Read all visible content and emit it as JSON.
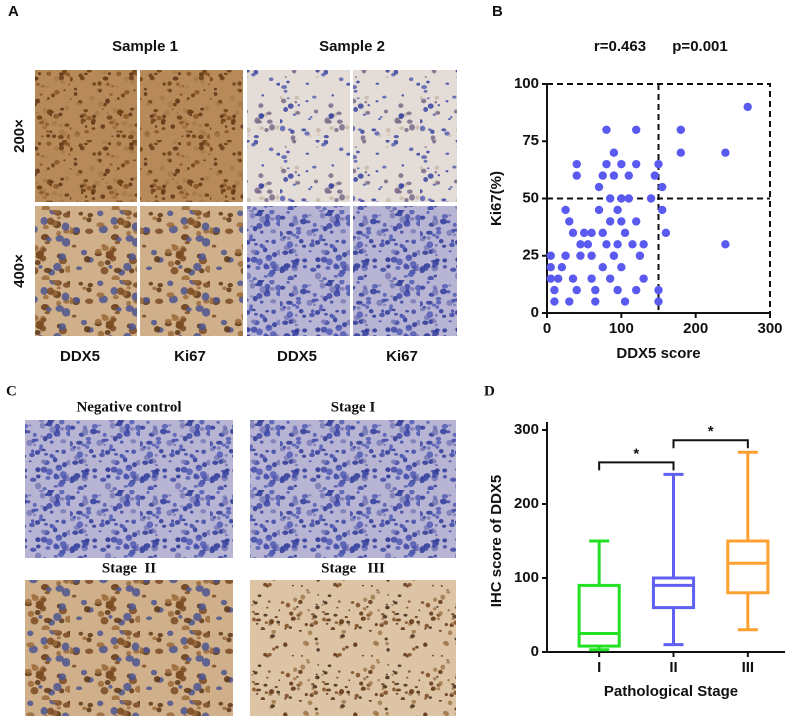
{
  "panels": {
    "A": {
      "label": "A",
      "columns": [
        "Sample 1",
        "Sample 2"
      ],
      "rows": [
        "200×",
        "400×"
      ],
      "stains": [
        "DDX5",
        "Ki67",
        "DDX5",
        "Ki67"
      ]
    },
    "C": {
      "label": "C",
      "tiles": [
        "Negative control",
        "Stage I",
        "Stage  II",
        "Stage   III"
      ]
    }
  },
  "chart_data": [
    {
      "type": "scatter",
      "panel_label": "B",
      "annotations": [
        "r=0.463",
        "p=0.001"
      ],
      "x_label": "DDX5 score",
      "y_label": "Ki67(%)",
      "color": "#5a5af0",
      "x": [
        5,
        5,
        5,
        10,
        10,
        15,
        20,
        25,
        25,
        30,
        30,
        35,
        35,
        40,
        40,
        40,
        45,
        45,
        50,
        55,
        60,
        60,
        60,
        65,
        65,
        70,
        70,
        75,
        75,
        75,
        80,
        80,
        80,
        85,
        85,
        85,
        90,
        90,
        90,
        95,
        95,
        95,
        100,
        100,
        100,
        100,
        105,
        105,
        110,
        110,
        115,
        120,
        120,
        120,
        120,
        125,
        130,
        130,
        140,
        145,
        150,
        150,
        150,
        155,
        155,
        160,
        180,
        180,
        240,
        240,
        270
      ],
      "values": [
        25,
        20,
        15,
        10,
        5,
        15,
        20,
        25,
        45,
        40,
        5,
        35,
        15,
        60,
        65,
        10,
        30,
        25,
        35,
        30,
        35,
        25,
        15,
        10,
        5,
        55,
        45,
        60,
        35,
        20,
        65,
        80,
        30,
        50,
        40,
        15,
        70,
        60,
        25,
        45,
        30,
        10,
        65,
        50,
        40,
        20,
        35,
        5,
        60,
        50,
        30,
        80,
        65,
        40,
        10,
        25,
        30,
        15,
        50,
        60,
        65,
        10,
        5,
        45,
        55,
        35,
        80,
        70,
        70,
        30,
        90
      ],
      "xlim": [
        0,
        300
      ],
      "ylim": [
        0,
        100
      ],
      "xticks": [
        0,
        100,
        200,
        300
      ],
      "yticks": [
        0,
        25,
        50,
        75,
        100
      ],
      "ref_lines": {
        "x": 150,
        "y": 50
      },
      "grid": false
    },
    {
      "type": "box",
      "panel_label": "D",
      "x_label": "Pathological Stage",
      "y_label": "IHC score of DDX5",
      "categories": [
        "I",
        "II",
        "III"
      ],
      "boxes": [
        {
          "min": 3,
          "q1": 8,
          "median": 25,
          "q3": 90,
          "max": 150,
          "color": "#22e022"
        },
        {
          "min": 10,
          "q1": 60,
          "median": 90,
          "q3": 100,
          "max": 240,
          "color": "#6060f0"
        },
        {
          "min": 30,
          "q1": 80,
          "median": 120,
          "q3": 150,
          "max": 270,
          "color": "#ffa030"
        }
      ],
      "ylim": [
        0,
        300
      ],
      "yticks": [
        0,
        100,
        200,
        300
      ],
      "significance": [
        {
          "between": [
            0,
            1
          ],
          "label": "*"
        },
        {
          "between": [
            1,
            2
          ],
          "label": "*"
        }
      ],
      "grid": false
    }
  ]
}
